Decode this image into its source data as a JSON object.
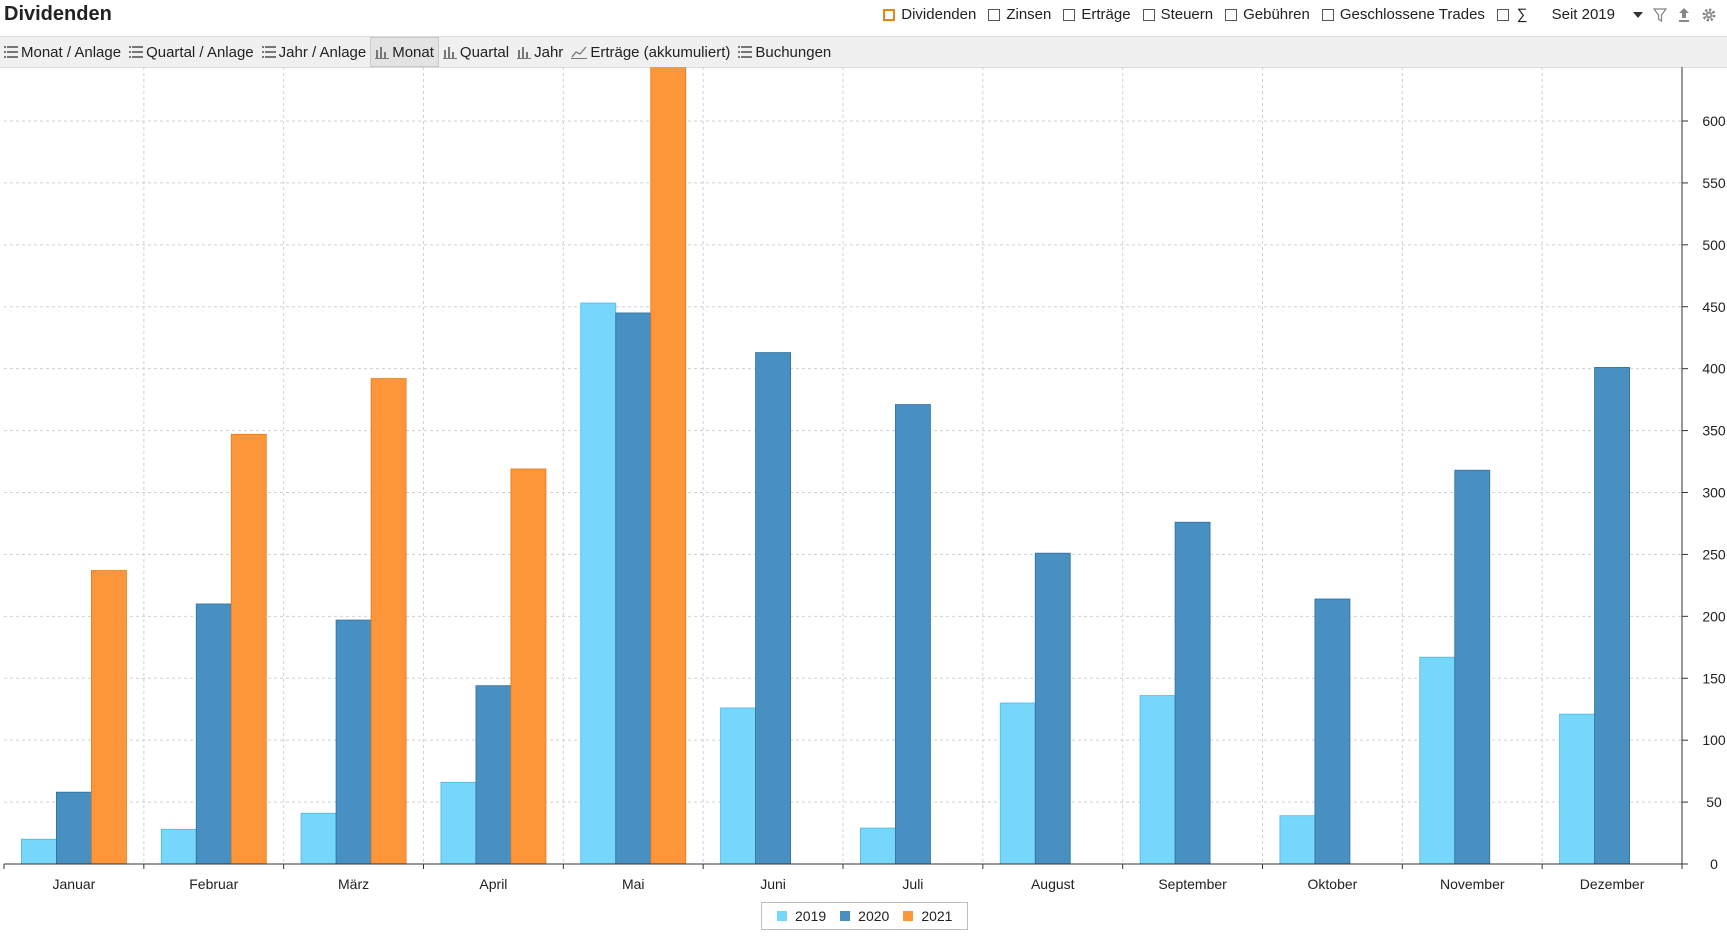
{
  "header": {
    "title": "Dividenden",
    "filters": [
      {
        "label": "Dividenden",
        "checked": true
      },
      {
        "label": "Zinsen",
        "checked": false
      },
      {
        "label": "Erträge",
        "checked": false
      },
      {
        "label": "Steuern",
        "checked": false
      },
      {
        "label": "Gebühren",
        "checked": false
      },
      {
        "label": "Geschlossene Trades",
        "checked": false
      }
    ],
    "sum_symbol": "∑",
    "period": "Seit 2019",
    "icons": [
      "filter-icon",
      "export-icon",
      "gear-icon"
    ]
  },
  "toolbar": {
    "tabs": [
      {
        "label": "Monat / Anlage",
        "icon": "list-icon",
        "active": false
      },
      {
        "label": "Quartal / Anlage",
        "icon": "list-icon",
        "active": false
      },
      {
        "label": "Jahr / Anlage",
        "icon": "list-icon",
        "active": false
      },
      {
        "label": "Monat",
        "icon": "bar-chart-icon",
        "active": true
      },
      {
        "label": "Quartal",
        "icon": "bar-chart-icon",
        "active": false
      },
      {
        "label": "Jahr",
        "icon": "bar-chart-icon",
        "active": false
      },
      {
        "label": "Erträge (akkumuliert)",
        "icon": "line-chart-icon",
        "active": false
      },
      {
        "label": "Buchungen",
        "icon": "list-icon",
        "active": false
      }
    ]
  },
  "colors": {
    "s2019": "#76d7fb",
    "s2020": "#4890c2",
    "s2021": "#fd9638",
    "s2019_border": "#4cb8e0",
    "s2020_border": "#2f6f9e",
    "s2021_border": "#e07a1a",
    "grid": "#d0d0d0"
  },
  "chart_data": {
    "type": "bar",
    "categories": [
      "Januar",
      "Februar",
      "März",
      "April",
      "Mai",
      "Juni",
      "Juli",
      "August",
      "September",
      "Oktober",
      "November",
      "Dezember"
    ],
    "series": [
      {
        "name": "2019",
        "values": [
          20,
          28,
          41,
          66,
          453,
          126,
          29,
          130,
          136,
          39,
          167,
          121
        ]
      },
      {
        "name": "2020",
        "values": [
          58,
          210,
          197,
          144,
          445,
          413,
          371,
          251,
          276,
          214,
          318,
          401
        ]
      },
      {
        "name": "2021",
        "values": [
          237,
          347,
          392,
          319,
          645,
          null,
          null,
          null,
          null,
          null,
          null,
          null
        ]
      }
    ],
    "ylim": [
      0,
      650
    ],
    "yticks": [
      0,
      50,
      100,
      150,
      200,
      250,
      300,
      350,
      400,
      450,
      500,
      550,
      600
    ],
    "y_axis_side": "right",
    "grid": true,
    "legend": "bottom-center"
  }
}
